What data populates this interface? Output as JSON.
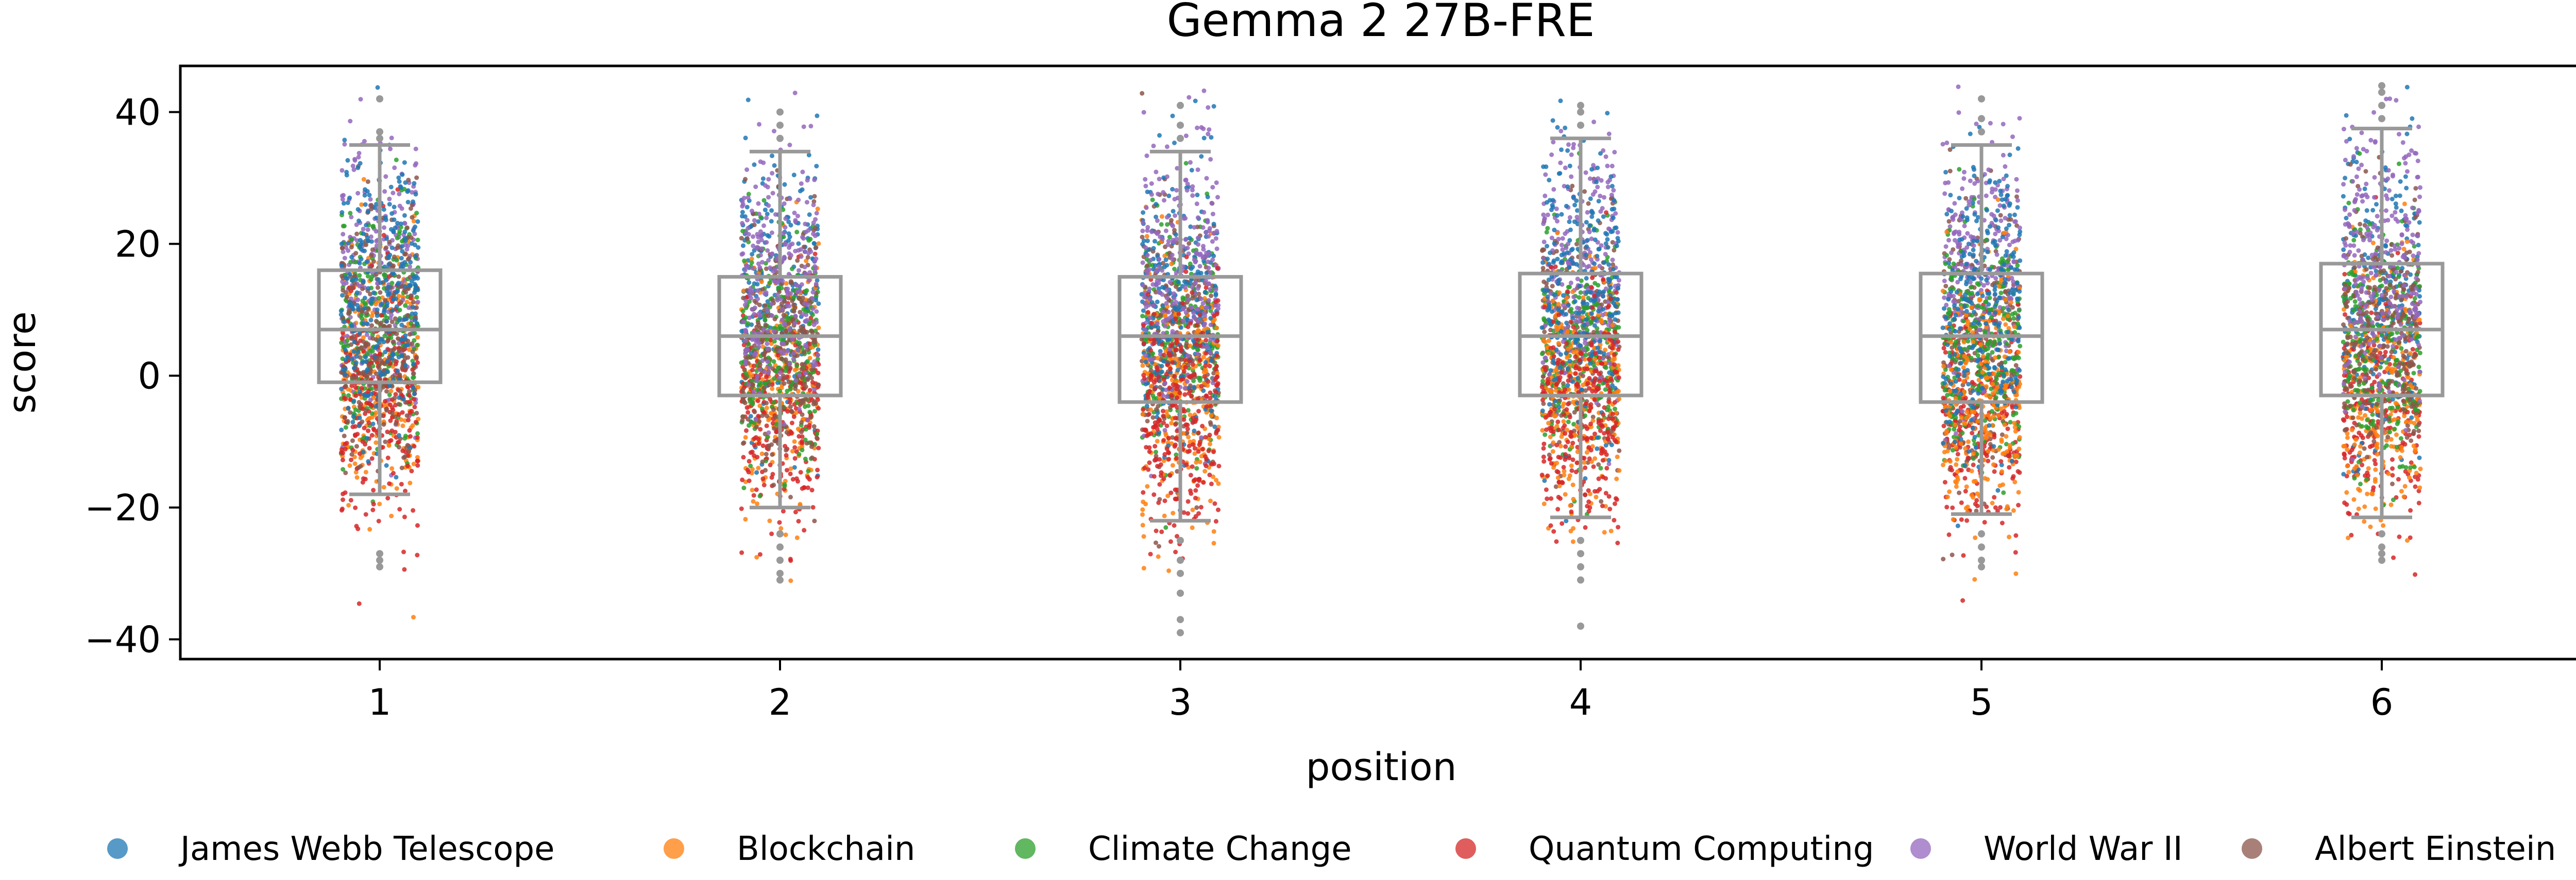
{
  "chart_data": {
    "type": "scatter",
    "subtype": "strip-plot-with-boxplot",
    "title": "Gemma 2 27B-FRE",
    "xlabel": "position",
    "ylabel": "score",
    "categories": [
      "1",
      "2",
      "3",
      "4",
      "5",
      "6"
    ],
    "y_ticks": [
      -40,
      -20,
      0,
      20,
      40
    ],
    "y_tick_labels": [
      "−40",
      "−20",
      "0",
      "20",
      "40"
    ],
    "ylim": [
      -43,
      47
    ],
    "grid": false,
    "legend_placement": "bottom",
    "box_color": "#999999",
    "boxes": [
      {
        "position": "1",
        "q1": -1,
        "median": 7,
        "q3": 16,
        "whisker_low": -18,
        "whisker_high": 35,
        "outliers": [
          -27,
          -28,
          -29,
          36,
          37,
          42
        ]
      },
      {
        "position": "2",
        "q1": -3,
        "median": 6,
        "q3": 15,
        "whisker_low": -20,
        "whisker_high": 34,
        "outliers": [
          -24,
          -26,
          -28,
          -30,
          -31,
          36,
          38,
          40
        ]
      },
      {
        "position": "3",
        "q1": -4,
        "median": 6,
        "q3": 15,
        "whisker_low": -22,
        "whisker_high": 34,
        "outliers": [
          -25,
          -28,
          -30,
          -33,
          -37,
          -39,
          36,
          38,
          41
        ]
      },
      {
        "position": "4",
        "q1": -3,
        "median": 6,
        "q3": 15.5,
        "whisker_low": -21.5,
        "whisker_high": 36,
        "outliers": [
          -25,
          -27,
          -29,
          -31,
          -38,
          38,
          40,
          41
        ]
      },
      {
        "position": "5",
        "q1": -4,
        "median": 6,
        "q3": 15.5,
        "whisker_low": -21,
        "whisker_high": 35,
        "outliers": [
          -24,
          -26,
          -28,
          -29,
          37,
          39,
          42
        ]
      },
      {
        "position": "6",
        "q1": -3,
        "median": 7,
        "q3": 17,
        "whisker_low": -21.5,
        "whisker_high": 37.5,
        "outliers": [
          -24,
          -26,
          -27,
          -28,
          39,
          41,
          43,
          44
        ]
      }
    ],
    "series": [
      {
        "name": "James Webb Telescope",
        "color": "#1f77b4",
        "mean_by_position": [
          13,
          12,
          11,
          11,
          11,
          11
        ],
        "spread": 11
      },
      {
        "name": "Blockchain",
        "color": "#ff7f0e",
        "mean_by_position": [
          0,
          -1,
          -2,
          -2,
          -3,
          -2
        ],
        "spread": 10
      },
      {
        "name": "Climate Change",
        "color": "#2ca02c",
        "mean_by_position": [
          6,
          5,
          4,
          4,
          4,
          5
        ],
        "spread": 9
      },
      {
        "name": "Quantum Computing",
        "color": "#d62728",
        "mean_by_position": [
          -4,
          -5,
          -6,
          -5,
          -6,
          -5
        ],
        "spread": 9
      },
      {
        "name": "World War II",
        "color": "#9467bd",
        "mean_by_position": [
          14,
          15,
          15,
          16,
          16,
          17
        ],
        "spread": 10
      },
      {
        "name": "Albert Einstein",
        "color": "#8c564b",
        "mean_by_position": [
          6,
          5,
          5,
          5,
          6,
          7
        ],
        "spread": 10
      }
    ],
    "points_per_series_per_position": 260
  }
}
